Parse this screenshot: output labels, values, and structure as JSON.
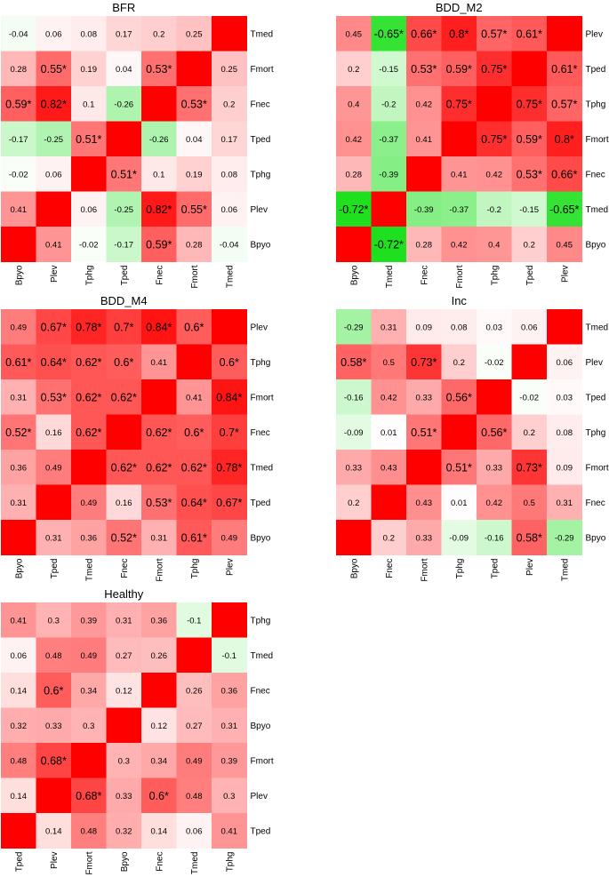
{
  "chart_data": [
    {
      "type": "heatmap",
      "title": "BFR",
      "row_labels": [
        "Tmed",
        "Fmort",
        "Fnec",
        "Tped",
        "Tphg",
        "Plev",
        "Bpyo"
      ],
      "col_labels": [
        "Bpyo",
        "Plev",
        "Tphg",
        "Tped",
        "Fnec",
        "Fmort",
        "Tmed"
      ],
      "values": [
        [
          "-0.04",
          "0.06",
          "0.08",
          "0.17",
          "0.2",
          "0.25",
          ""
        ],
        [
          "0.28",
          "0.55*",
          "0.19",
          "0.04",
          "0.53*",
          "",
          "0.25"
        ],
        [
          "0.59*",
          "0.82*",
          "0.1",
          "-0.26",
          "",
          "0.53*",
          "0.2"
        ],
        [
          "-0.17",
          "-0.25",
          "0.51*",
          "",
          "-0.26",
          "0.04",
          "0.17"
        ],
        [
          "-0.02",
          "0.06",
          "",
          "0.51*",
          "0.1",
          "0.19",
          "0.08"
        ],
        [
          "0.41",
          "",
          "0.06",
          "-0.25",
          "0.82*",
          "0.55*",
          "0.06"
        ],
        [
          "",
          "0.41",
          "-0.02",
          "-0.17",
          "0.59*",
          "0.28",
          "-0.04"
        ]
      ]
    },
    {
      "type": "heatmap",
      "title": "BDD_M2",
      "row_labels": [
        "Plev",
        "Tped",
        "Tphg",
        "Fmort",
        "Fnec",
        "Tmed",
        "Bpyo"
      ],
      "col_labels": [
        "Bpyo",
        "Tmed",
        "Fnec",
        "Fmort",
        "Tphg",
        "Tped",
        "Plev"
      ],
      "values": [
        [
          "0.45",
          "-0.65*",
          "0.66*",
          "0.8*",
          "0.57*",
          "0.61*",
          ""
        ],
        [
          "0.2",
          "-0.15",
          "0.53*",
          "0.59*",
          "0.75*",
          "",
          "0.61*"
        ],
        [
          "0.4",
          "-0.2",
          "0.42",
          "0.75*",
          "",
          "0.75*",
          "0.57*"
        ],
        [
          "0.42",
          "-0.37",
          "0.41",
          "",
          "0.75*",
          "0.59*",
          "0.8*"
        ],
        [
          "0.28",
          "-0.39",
          "",
          "0.41",
          "0.42",
          "0.53*",
          "0.66*"
        ],
        [
          "-0.72*",
          "",
          "-0.39",
          "-0.37",
          "-0.2",
          "-0.15",
          "-0.65*"
        ],
        [
          "",
          "-0.72*",
          "0.28",
          "0.42",
          "0.4",
          "0.2",
          "0.45"
        ]
      ]
    },
    {
      "type": "heatmap",
      "title": "BDD_M4",
      "row_labels": [
        "Plev",
        "Tphg",
        "Fmort",
        "Fnec",
        "Tmed",
        "Tped",
        "Bpyo"
      ],
      "col_labels": [
        "Bpyo",
        "Tped",
        "Tmed",
        "Fnec",
        "Fmort",
        "Tphg",
        "Plev"
      ],
      "values": [
        [
          "0.49",
          "0.67*",
          "0.78*",
          "0.7*",
          "0.84*",
          "0.6*",
          ""
        ],
        [
          "0.61*",
          "0.64*",
          "0.62*",
          "0.6*",
          "0.41",
          "",
          "0.6*"
        ],
        [
          "0.31",
          "0.53*",
          "0.62*",
          "0.62*",
          "",
          "0.41",
          "0.84*"
        ],
        [
          "0.52*",
          "0.16",
          "0.62*",
          "",
          "0.62*",
          "0.6*",
          "0.7*"
        ],
        [
          "0.36",
          "0.49",
          "",
          "0.62*",
          "0.62*",
          "0.62*",
          "0.78*"
        ],
        [
          "0.31",
          "",
          "0.49",
          "0.16",
          "0.53*",
          "0.64*",
          "0.67*"
        ],
        [
          "",
          "0.31",
          "0.36",
          "0.52*",
          "0.31",
          "0.61*",
          "0.49"
        ]
      ]
    },
    {
      "type": "heatmap",
      "title": "Inc",
      "row_labels": [
        "Tmed",
        "Plev",
        "Tped",
        "Tphg",
        "Fmort",
        "Fnec",
        "Bpyo"
      ],
      "col_labels": [
        "Bpyo",
        "Fnec",
        "Fmort",
        "Tphg",
        "Tped",
        "Plev",
        "Tmed"
      ],
      "values": [
        [
          "-0.29",
          "0.31",
          "0.09",
          "0.08",
          "0.03",
          "0.06",
          ""
        ],
        [
          "0.58*",
          "0.5",
          "0.73*",
          "0.2",
          "-0.02",
          "",
          "0.06"
        ],
        [
          "-0.16",
          "0.42",
          "0.33",
          "0.56*",
          "",
          "-0.02",
          "0.03"
        ],
        [
          "-0.09",
          "0.01",
          "0.51*",
          "",
          "0.56*",
          "0.2",
          "0.08"
        ],
        [
          "0.33",
          "0.43",
          "",
          "0.51*",
          "0.33",
          "0.73*",
          "0.09"
        ],
        [
          "0.2",
          "",
          "0.43",
          "0.01",
          "0.42",
          "0.5",
          "0.31"
        ],
        [
          "",
          "0.2",
          "0.33",
          "-0.09",
          "-0.16",
          "0.58*",
          "-0.29"
        ]
      ]
    },
    {
      "type": "heatmap",
      "title": "Healthy",
      "row_labels": [
        "Tphg",
        "Tmed",
        "Fnec",
        "Bpyo",
        "Fmort",
        "Plev",
        "Tped"
      ],
      "col_labels": [
        "Tped",
        "Plev",
        "Fmort",
        "Bpyo",
        "Fnec",
        "Tmed",
        "Tphg"
      ],
      "values": [
        [
          "0.41",
          "0.3",
          "0.39",
          "0.31",
          "0.36",
          "-0.1",
          ""
        ],
        [
          "0.06",
          "0.48",
          "0.49",
          "0.27",
          "0.26",
          "",
          "-0.1"
        ],
        [
          "0.14",
          "0.6*",
          "0.34",
          "0.12",
          "",
          "0.26",
          "0.36"
        ],
        [
          "0.32",
          "0.33",
          "0.3",
          "",
          "0.12",
          "0.27",
          "0.31"
        ],
        [
          "0.48",
          "0.68*",
          "",
          "0.3",
          "0.34",
          "0.49",
          "0.39"
        ],
        [
          "0.14",
          "",
          "0.68*",
          "0.33",
          "0.6*",
          "0.48",
          "0.3"
        ],
        [
          "",
          "0.14",
          "0.48",
          "0.32",
          "0.14",
          "0.06",
          "0.41"
        ]
      ]
    }
  ],
  "colors": {
    "negative": "#1ee01e",
    "zero": "#ffffff",
    "positive": "#ff0000",
    "diagonal": "#ff0000"
  }
}
